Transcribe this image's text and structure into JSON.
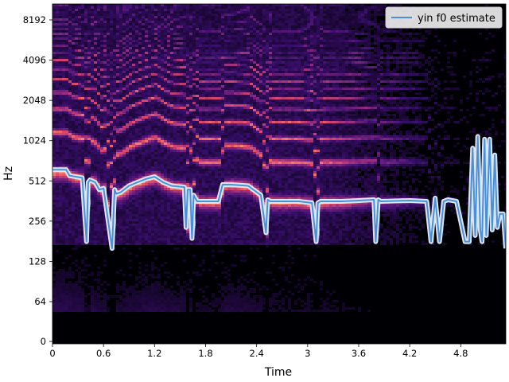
{
  "chart_data": {
    "type": "heatmap",
    "overlay_type": "line",
    "colormap": "magma",
    "xlabel": "Time",
    "ylabel": "Hz",
    "x_ticks": [
      "0",
      "0.6",
      "1.2",
      "1.8",
      "2.4",
      "3",
      "3.6",
      "4.2",
      "4.8"
    ],
    "y_ticks": [
      "0",
      "64",
      "128",
      "256",
      "512",
      "1024",
      "2048",
      "4096",
      "8192"
    ],
    "xlim": [
      0,
      5.33
    ],
    "y_scale": "log2 (symlog, 0 at bottom)",
    "grid": false,
    "legend_position": "top-right",
    "colors": {
      "f0_line": "#4a90d9",
      "f0_halo": "#dce6f2",
      "background": "#000004"
    },
    "series": [
      {
        "name": "yin f0 estimate",
        "x": [
          0,
          0.16,
          0.2,
          0.35,
          0.4,
          0.42,
          0.44,
          0.5,
          0.55,
          0.6,
          0.7,
          0.73,
          0.75,
          0.8,
          0.9,
          1.0,
          1.1,
          1.2,
          1.3,
          1.4,
          1.55,
          1.57,
          1.59,
          1.62,
          1.64,
          1.66,
          1.7,
          1.8,
          1.95,
          2.0,
          2.1,
          2.3,
          2.45,
          2.51,
          2.53,
          2.56,
          2.7,
          2.9,
          3.05,
          3.1,
          3.12,
          3.15,
          3.4,
          3.6,
          3.78,
          3.8,
          3.83,
          3.86,
          4.2,
          4.4,
          4.45,
          4.5,
          4.55,
          4.6,
          4.65,
          4.75,
          4.85,
          4.9,
          4.94,
          4.97,
          5.0,
          5.03,
          5.05,
          5.08,
          5.1,
          5.14,
          5.17,
          5.2,
          5.23,
          5.26,
          5.3,
          5.33
        ],
        "y": [
          620,
          620,
          560,
          540,
          180,
          500,
          520,
          500,
          440,
          450,
          160,
          440,
          410,
          420,
          470,
          500,
          530,
          550,
          500,
          470,
          460,
          230,
          440,
          440,
          190,
          400,
          360,
          360,
          360,
          480,
          480,
          470,
          400,
          210,
          370,
          360,
          360,
          360,
          350,
          180,
          350,
          360,
          360,
          365,
          370,
          180,
          370,
          360,
          365,
          360,
          180,
          380,
          180,
          360,
          370,
          360,
          180,
          180,
          900,
          200,
          1100,
          220,
          180,
          1050,
          200,
          1050,
          220,
          800,
          230,
          290,
          290,
          160
        ]
      }
    ]
  }
}
